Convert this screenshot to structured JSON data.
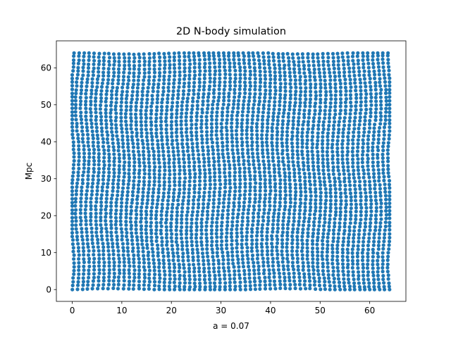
{
  "chart_data": {
    "type": "scatter",
    "title": "2D N-body simulation",
    "xlabel": "a = 0.07",
    "ylabel": "Mpc",
    "xlim": [
      -3.2,
      67.3
    ],
    "ylim": [
      -3.2,
      67.3
    ],
    "xticks": [
      0,
      10,
      20,
      30,
      40,
      50,
      60
    ],
    "yticks": [
      0,
      10,
      20,
      30,
      40,
      50,
      60
    ],
    "grid": false,
    "legend": "none",
    "marker_color": "#1f77b4",
    "particles": {
      "grid_n": 64,
      "spacing": 1.0,
      "x_range": [
        0,
        64
      ],
      "y_range": [
        0,
        64
      ],
      "description": "64 x 64 particle lattice spanning 0-64 Mpc in x and y, slightly perturbed"
    }
  }
}
